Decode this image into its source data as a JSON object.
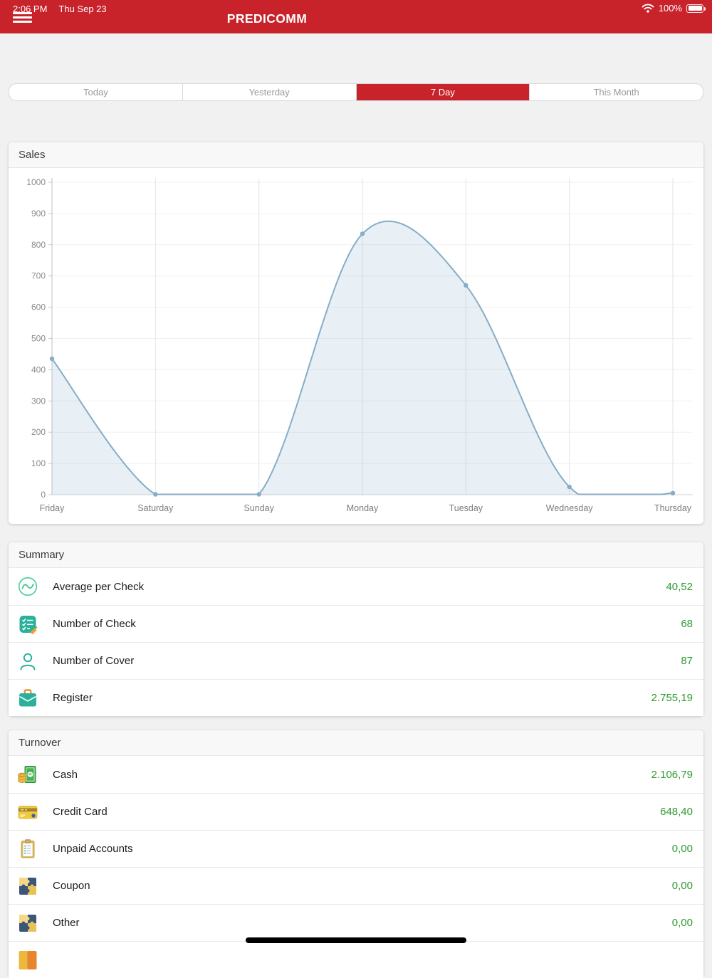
{
  "status_bar": {
    "time": "2:06 PM",
    "date": "Thu Sep 23",
    "battery": "100%"
  },
  "nav": {
    "title": "PREDICOMM"
  },
  "tabs": {
    "items": [
      {
        "label": "Today",
        "selected": false
      },
      {
        "label": "Yesterday",
        "selected": false
      },
      {
        "label": "7 Day",
        "selected": true
      },
      {
        "label": "This Month",
        "selected": false
      }
    ]
  },
  "chart_data": {
    "type": "area",
    "title": "Sales",
    "categories": [
      "Friday",
      "Saturday",
      "Sunday",
      "Monday",
      "Tuesday",
      "Wednesday",
      "Thursday"
    ],
    "values": [
      435,
      0,
      0,
      835,
      670,
      25,
      5
    ],
    "xlabel": "",
    "ylabel": "",
    "ylim": [
      0,
      1000
    ],
    "ytick_step": 100,
    "grid": true,
    "legend": "none",
    "line_color": "#85adc8",
    "fill_color": "rgba(133,173,200,0.18)"
  },
  "summary": {
    "title": "Summary",
    "rows": [
      {
        "icon": "average-chart-icon",
        "label": "Average per Check",
        "value": "40,52"
      },
      {
        "icon": "checklist-icon",
        "label": "Number of Check",
        "value": "68"
      },
      {
        "icon": "person-icon",
        "label": "Number of Cover",
        "value": "87"
      },
      {
        "icon": "briefcase-icon",
        "label": "Register",
        "value": "2.755,19"
      }
    ]
  },
  "turnover": {
    "title": "Turnover",
    "rows": [
      {
        "icon": "cash-icon",
        "label": "Cash",
        "value": "2.106,79"
      },
      {
        "icon": "credit-card-icon",
        "label": "Credit Card",
        "value": "648,40"
      },
      {
        "icon": "clipboard-icon",
        "label": "Unpaid Accounts",
        "value": "0,00"
      },
      {
        "icon": "puzzle-icon",
        "label": "Coupon",
        "value": "0,00"
      },
      {
        "icon": "puzzle-icon",
        "label": "Other",
        "value": "0,00"
      }
    ]
  },
  "colors": {
    "accent_red": "#c8232b",
    "value_green": "#2e9b33",
    "icon_teal": "#2bb19b"
  }
}
